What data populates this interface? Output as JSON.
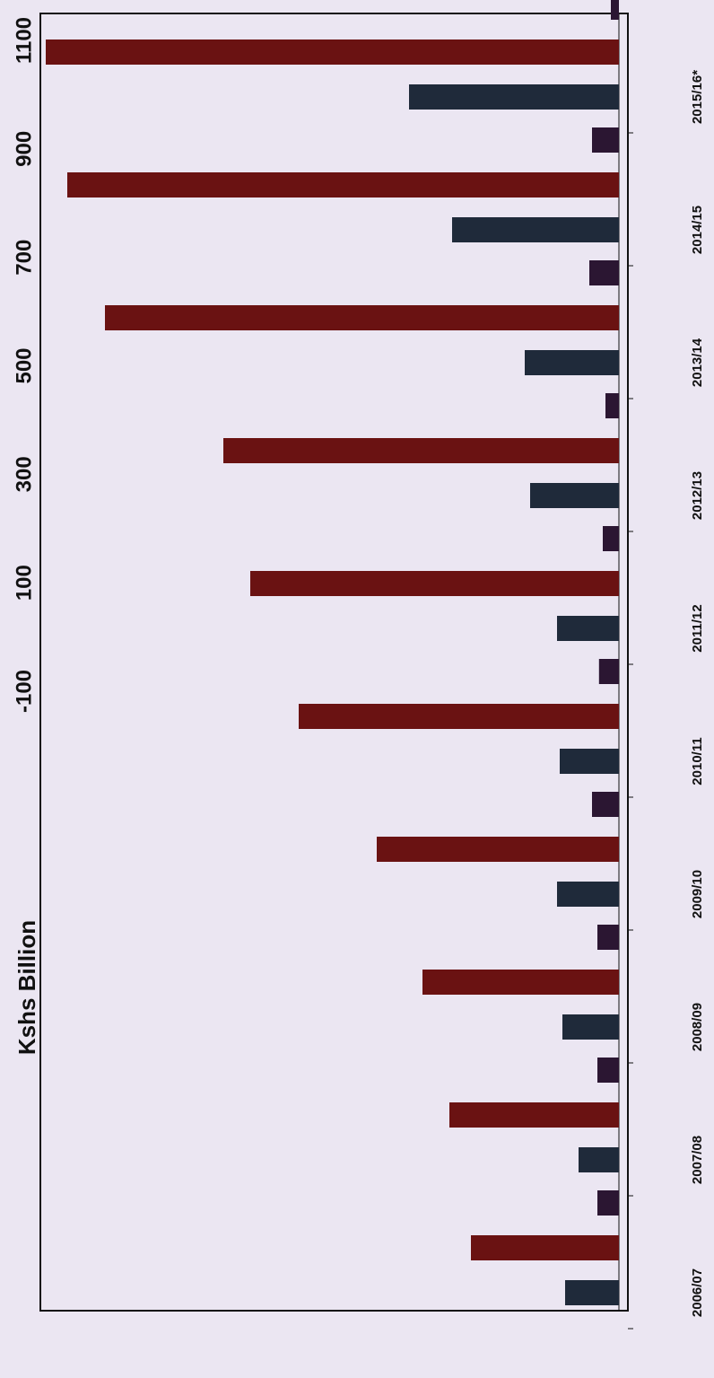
{
  "chart_data": {
    "type": "bar",
    "orientation": "horizontal",
    "y_label": "Kshs Billion",
    "categories": [
      "2006/07",
      "2007/08",
      "2008/09",
      "2009/10",
      "2010/11",
      "2011/12",
      "2012/13",
      "2013/14",
      "2014/15",
      "2015/16*"
    ],
    "series": [
      {
        "color": "#1f2a3a",
        "values": [
          100,
          75,
          105,
          115,
          110,
          115,
          165,
          175,
          310,
          390
        ]
      },
      {
        "color": "#6a1212",
        "values": [
          275,
          315,
          365,
          450,
          595,
          685,
          735,
          955,
          1025,
          1065
        ]
      },
      {
        "color": "#2b1632",
        "values": [
          40,
          40,
          40,
          50,
          37,
          30,
          25,
          55,
          50,
          15
        ]
      }
    ],
    "ylim": [
      -100,
      1100
    ],
    "yticks": [
      -100,
      100,
      300,
      500,
      700,
      900,
      1100
    ]
  }
}
